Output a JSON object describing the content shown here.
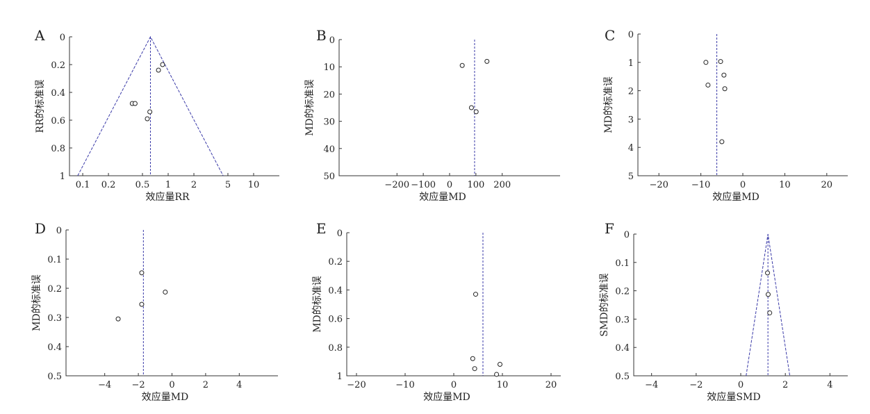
{
  "chart_data": [
    {
      "panel": "A",
      "type": "scatter",
      "xlabel": "效应量RR",
      "ylabel": "RR的标准误",
      "xscale": "log",
      "xlim": [
        0.07,
        20
      ],
      "ylim": [
        1,
        0
      ],
      "x_ticks": [
        0.1,
        0.2,
        0.5,
        1,
        2,
        5,
        10
      ],
      "x_tick_labels": [
        "0.1",
        "0.2",
        "0.5",
        "1",
        "2",
        "5",
        "10"
      ],
      "y_ticks": [
        0,
        0.2,
        0.4,
        0.6,
        0.8,
        1
      ],
      "y_tick_labels": [
        "0",
        "0.2",
        "0.4",
        "0.6",
        "0.8",
        "1"
      ],
      "pooled": 0.62,
      "funnel": true,
      "points": [
        {
          "x": 0.86,
          "y": 0.2
        },
        {
          "x": 0.77,
          "y": 0.24
        },
        {
          "x": 0.38,
          "y": 0.48
        },
        {
          "x": 0.41,
          "y": 0.48
        },
        {
          "x": 0.61,
          "y": 0.54
        },
        {
          "x": 0.57,
          "y": 0.59
        }
      ]
    },
    {
      "panel": "B",
      "type": "scatter",
      "xlabel": "效应量MD",
      "ylabel": "MD的标准误",
      "xscale": "linear",
      "xlim": [
        -420,
        420
      ],
      "ylim": [
        50,
        0
      ],
      "x_ticks": [
        -200,
        -100,
        0,
        100,
        200
      ],
      "x_tick_labels": [
        "−200",
        "−100",
        "0",
        "100",
        "200"
      ],
      "y_ticks": [
        0,
        10,
        20,
        30,
        40,
        50
      ],
      "y_tick_labels": [
        "0",
        "10",
        "20",
        "30",
        "40",
        "50"
      ],
      "pooled": 95,
      "funnel": false,
      "points": [
        {
          "x": 142,
          "y": 8
        },
        {
          "x": 48,
          "y": 9.5
        },
        {
          "x": 83,
          "y": 25
        },
        {
          "x": 101,
          "y": 26.5
        }
      ]
    },
    {
      "panel": "C",
      "type": "scatter",
      "xlabel": "效应量MD",
      "ylabel": "MD的标准误",
      "xscale": "linear",
      "xlim": [
        -25,
        25
      ],
      "ylim": [
        5,
        0
      ],
      "x_ticks": [
        -20,
        -10,
        0,
        10,
        20
      ],
      "x_tick_labels": [
        "−20",
        "−10",
        "0",
        "10",
        "20"
      ],
      "y_ticks": [
        0,
        1,
        2,
        3,
        4,
        5
      ],
      "y_tick_labels": [
        "0",
        "1",
        "2",
        "3",
        "4",
        "5"
      ],
      "pooled": -6.2,
      "funnel": false,
      "points": [
        {
          "x": -5.3,
          "y": 0.97
        },
        {
          "x": -8.8,
          "y": 1.0
        },
        {
          "x": -4.5,
          "y": 1.45
        },
        {
          "x": -8.3,
          "y": 1.8
        },
        {
          "x": -4.3,
          "y": 1.93
        },
        {
          "x": -5.0,
          "y": 3.8
        }
      ]
    },
    {
      "panel": "D",
      "type": "scatter",
      "xlabel": "效应量MD",
      "ylabel": "MD的标准误",
      "xscale": "linear",
      "xlim": [
        -6.3,
        6.3
      ],
      "ylim": [
        0.5,
        0
      ],
      "x_ticks": [
        -4,
        -2,
        0,
        2,
        4
      ],
      "x_tick_labels": [
        "−4",
        "−2",
        "0",
        "2",
        "4"
      ],
      "y_ticks": [
        0,
        0.1,
        0.2,
        0.3,
        0.4,
        0.5
      ],
      "y_tick_labels": [
        "0",
        "0.1",
        "0.2",
        "0.3",
        "0.4",
        "0.5"
      ],
      "pooled": -1.7,
      "funnel": false,
      "points": [
        {
          "x": -1.8,
          "y": 0.147
        },
        {
          "x": -0.4,
          "y": 0.213
        },
        {
          "x": -1.8,
          "y": 0.255
        },
        {
          "x": -3.2,
          "y": 0.305
        }
      ]
    },
    {
      "panel": "E",
      "type": "scatter",
      "xlabel": "效应量MD",
      "ylabel": "MD的标准误",
      "xscale": "linear",
      "xlim": [
        -22,
        22
      ],
      "ylim": [
        1,
        0
      ],
      "x_ticks": [
        -20,
        -10,
        0,
        10,
        20
      ],
      "x_tick_labels": [
        "−20",
        "−10",
        "0",
        "10",
        "20"
      ],
      "y_ticks": [
        0,
        0.2,
        0.4,
        0.6,
        0.8,
        1
      ],
      "y_tick_labels": [
        "0",
        "0.2",
        "0.4",
        "0.6",
        "0.8",
        "1"
      ],
      "pooled": 6.0,
      "funnel": false,
      "points": [
        {
          "x": 4.5,
          "y": 0.43
        },
        {
          "x": 3.9,
          "y": 0.88
        },
        {
          "x": 9.5,
          "y": 0.92
        },
        {
          "x": 4.3,
          "y": 0.95
        },
        {
          "x": 8.8,
          "y": 0.99
        }
      ]
    },
    {
      "panel": "F",
      "type": "scatter",
      "xlabel": "效应量SMD",
      "ylabel": "SMD的标准误",
      "xscale": "linear",
      "xlim": [
        -4.8,
        4.8
      ],
      "ylim": [
        0.5,
        0
      ],
      "x_ticks": [
        -4,
        -2,
        0,
        2,
        4
      ],
      "x_tick_labels": [
        "−4",
        "−2",
        "0",
        "2",
        "4"
      ],
      "y_ticks": [
        0,
        0.1,
        0.2,
        0.3,
        0.4,
        0.5
      ],
      "y_tick_labels": [
        "0",
        "0.1",
        "0.2",
        "0.3",
        "0.4",
        "0.5"
      ],
      "pooled": 1.22,
      "funnel": true,
      "points": [
        {
          "x": 1.2,
          "y": 0.137
        },
        {
          "x": 1.23,
          "y": 0.213
        },
        {
          "x": 1.3,
          "y": 0.278
        }
      ]
    }
  ],
  "colors": {
    "axis": "#333333",
    "guide_lines": "#3a3aa8",
    "points": "#222222"
  }
}
